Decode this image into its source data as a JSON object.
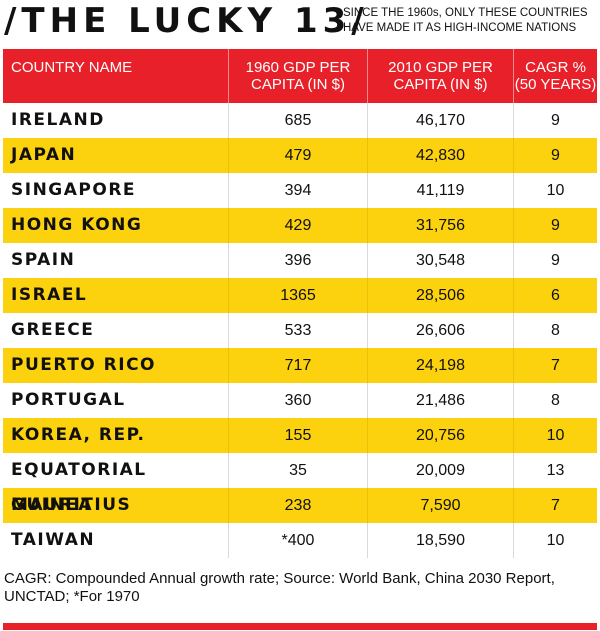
{
  "header": {
    "title": "/THE LUCKY 13/",
    "subtitle": "SINCE THE 1960s, ONLY THESE COUNTRIES HAVE MADE IT AS HIGH-INCOME NATIONS"
  },
  "colors": {
    "header_red": "#e8202a",
    "row_yellow": "#fbd20d",
    "row_white": "#ffffff",
    "header_text": "#ffffff",
    "body_text": "#111111"
  },
  "chart_data": {
    "type": "table",
    "columns": [
      "COUNTRY NAME",
      "1960 GDP PER CAPITA (IN $)",
      "2010 GDP PER CAPITA (IN $)",
      "CAGR % (50 YEARS)"
    ],
    "rows": [
      [
        "IRELAND",
        "685",
        "46,170",
        "9"
      ],
      [
        "JAPAN",
        "479",
        "42,830",
        "9"
      ],
      [
        "SINGAPORE",
        "394",
        "41,119",
        "10"
      ],
      [
        "HONG KONG",
        "429",
        "31,756",
        "9"
      ],
      [
        "SPAIN",
        "396",
        "30,548",
        "9"
      ],
      [
        "ISRAEL",
        "1365",
        "28,506",
        "6"
      ],
      [
        "GREECE",
        "533",
        "26,606",
        "8"
      ],
      [
        "PUERTO RICO",
        "717",
        "24,198",
        "7"
      ],
      [
        "PORTUGAL",
        "360",
        "21,486",
        "8"
      ],
      [
        "KOREA, REP.",
        "155",
        "20,756",
        "10"
      ],
      [
        "EQUATORIAL GUINEA",
        "35",
        "20,009",
        "13"
      ],
      [
        "MAURITIUS",
        "238",
        "7,590",
        "7"
      ],
      [
        "TAIWAN",
        "*400",
        "18,590",
        "10"
      ]
    ]
  },
  "footnote": "CAGR: Compounded Annual growth rate; Source: World Bank, China 2030 Report, UNCTAD; *For 1970"
}
